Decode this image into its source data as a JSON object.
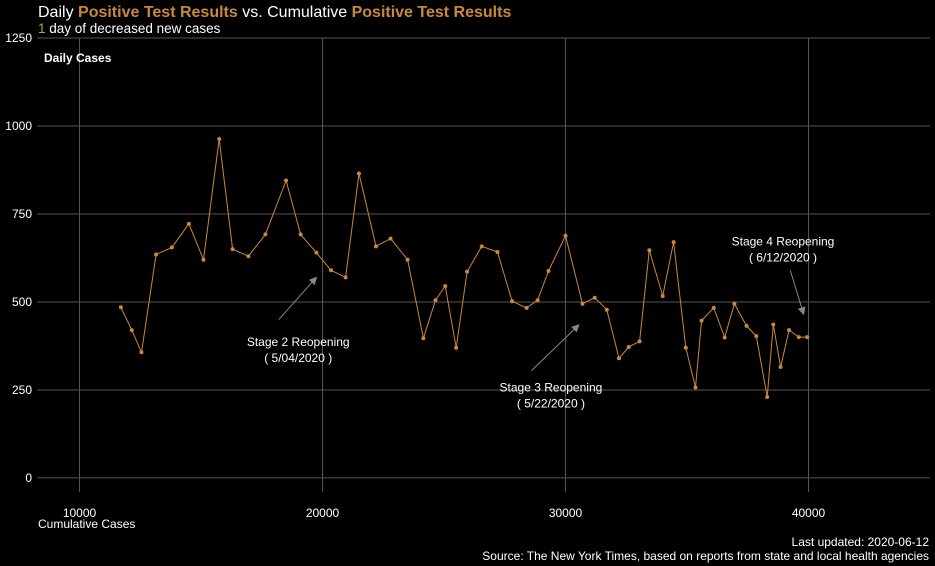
{
  "header": {
    "title_parts": [
      "Daily ",
      "Positive Test Results",
      " vs. Cumulative ",
      "Positive Test Results"
    ],
    "subtitle_num": "1",
    "subtitle_rest": " day of decreased new cases"
  },
  "footer": {
    "updated": "Last updated: 2020-06-12",
    "source": "Source: The New York Times, based on reports from state and local health agencies"
  },
  "colors": {
    "line": "#c8893a",
    "grid": "#555555",
    "text": "#ffffff",
    "arrow": "#888888",
    "accent_green": "#7fbf3f"
  },
  "chart_data": {
    "type": "line",
    "title": "Daily Positive Test Results vs. Cumulative Positive Test Results",
    "xlabel": "Cumulative Cases",
    "ylabel": "Daily Cases",
    "xlim": [
      8250,
      45000
    ],
    "ylim": [
      -40,
      1250
    ],
    "xticks": [
      10000,
      20000,
      30000,
      40000
    ],
    "yticks": [
      0,
      250,
      500,
      750,
      1000,
      1250
    ],
    "grid": true,
    "series": [
      {
        "name": "Daily Cases",
        "x": [
          11700,
          12150,
          12550,
          13150,
          13800,
          14500,
          15100,
          15750,
          16300,
          16950,
          17650,
          18500,
          19100,
          19750,
          20350,
          20950,
          21500,
          22200,
          22800,
          23500,
          24150,
          24650,
          25050,
          25500,
          25950,
          26550,
          27200,
          27800,
          28400,
          28850,
          29300,
          30000,
          30700,
          31200,
          31700,
          32200,
          32600,
          33050,
          33450,
          34000,
          34450,
          34950,
          35350,
          35600,
          36100,
          36550,
          36950,
          37450,
          37850,
          38300,
          38550,
          38850,
          39200,
          39600,
          39950
        ],
        "y": [
          485,
          420,
          357,
          635,
          655,
          722,
          620,
          963,
          650,
          630,
          692,
          845,
          692,
          640,
          590,
          570,
          865,
          658,
          680,
          620,
          397,
          505,
          545,
          370,
          586,
          658,
          642,
          502,
          483,
          505,
          588,
          688,
          495,
          512,
          478,
          340,
          372,
          388,
          647,
          517,
          670,
          370,
          257,
          447,
          483,
          399,
          495,
          432,
          403,
          230,
          436,
          315,
          420,
          400,
          400
        ]
      }
    ],
    "annotations": [
      {
        "line1": "Stage 2 Reopening",
        "line2": "( 5/04/2020 )",
        "x": 19000,
        "y": 375,
        "arrow_from": [
          18200,
          450
        ],
        "arrow_to": [
          19750,
          570
        ]
      },
      {
        "line1": "Stage 3 Reopening",
        "line2": "( 5/22/2020 )",
        "x": 29400,
        "y": 245,
        "arrow_from": [
          28600,
          305
        ],
        "arrow_to": [
          30550,
          435
        ]
      },
      {
        "line1": "Stage 4 Reopening",
        "line2": "( 6/12/2020 )",
        "x": 38950,
        "y": 660,
        "arrow_from": [
          39250,
          590
        ],
        "arrow_to": [
          39800,
          465
        ]
      }
    ]
  }
}
